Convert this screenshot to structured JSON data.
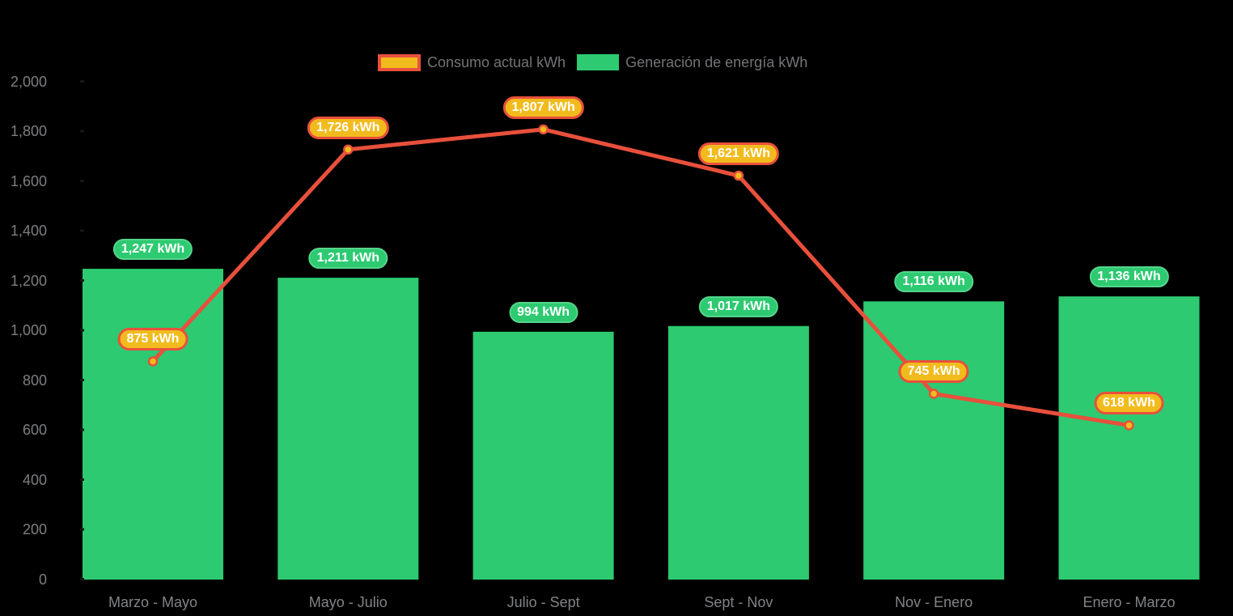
{
  "legend": {
    "items": [
      {
        "label": "Consumo actual kWh",
        "series": "consumo"
      },
      {
        "label": "Generación de energía kWh",
        "series": "generacion"
      }
    ]
  },
  "colors": {
    "background": "#000000",
    "bar_green": "#2dca71",
    "bar_pill_border": "#55d58b",
    "line_red": "#e8503c",
    "marker_gold": "#f2bb1d",
    "pill_gold": "#f2bb1d",
    "pill_text": "#ffffff",
    "axis_text": "#7d7e81",
    "category_text": "#828387",
    "legend_text": "#737477"
  },
  "chart_data": {
    "type": "combo-bar-line",
    "title": "",
    "xlabel": "",
    "ylabel": "",
    "grid": false,
    "legend_position": "top-center",
    "categories": [
      "Marzo - Mayo",
      "Mayo - Julio",
      "Julio - Sept",
      "Sept - Nov",
      "Nov - Enero",
      "Enero - Marzo"
    ],
    "series": [
      {
        "name": "Consumo actual kWh",
        "type": "line",
        "values": [
          875,
          1726,
          1807,
          1621,
          745,
          618
        ],
        "point_labels": [
          "875 kWh",
          "1,726 kWh",
          "1,807 kWh",
          "1,621 kWh",
          "745 kWh",
          "618 kWh"
        ]
      },
      {
        "name": "Generación de energía kWh",
        "type": "bar",
        "values": [
          1247,
          1211,
          994,
          1017,
          1116,
          1136
        ],
        "point_labels": [
          "1,247 kWh",
          "1,211 kWh",
          "994 kWh",
          "1,017 kWh",
          "1,116 kWh",
          "1,136 kWh"
        ]
      }
    ],
    "ylim": [
      0,
      2000
    ],
    "ytick_step": 200,
    "ytick_labels": [
      "0",
      "200",
      "400",
      "600",
      "800",
      "1,000",
      "1,200",
      "1,400",
      "1,600",
      "1,800",
      "2,000"
    ]
  }
}
